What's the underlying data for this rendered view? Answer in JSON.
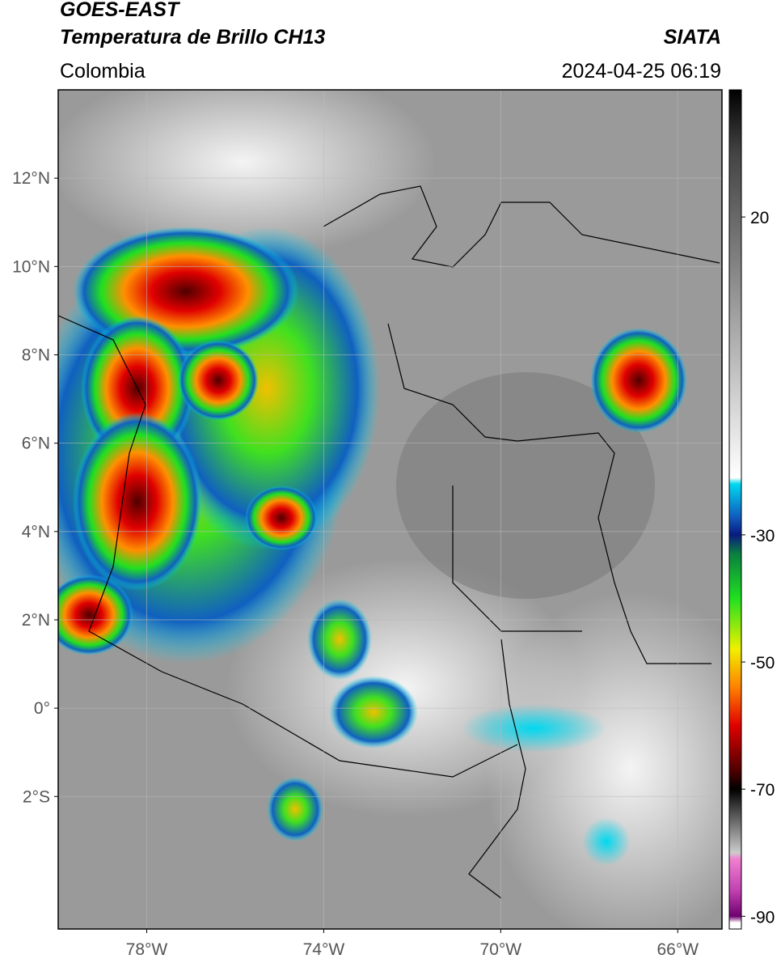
{
  "header": {
    "title": "GOES-EAST",
    "subtitle": "Temperatura de Brillo CH13",
    "source": "SIATA",
    "region": "Colombia",
    "datetime": "2024-04-25 06:19"
  },
  "map": {
    "lon_range": [
      -80,
      -65
    ],
    "lat_range": [
      -5,
      14
    ],
    "lon_ticks": [
      {
        "value": -78,
        "label": "78°W"
      },
      {
        "value": -74,
        "label": "74°W"
      },
      {
        "value": -70,
        "label": "70°W"
      },
      {
        "value": -66,
        "label": "66°W"
      }
    ],
    "lat_ticks": [
      {
        "value": 12,
        "label": "12°N"
      },
      {
        "value": 10,
        "label": "10°N"
      },
      {
        "value": 8,
        "label": "8°N"
      },
      {
        "value": 6,
        "label": "6°N"
      },
      {
        "value": 4,
        "label": "4°N"
      },
      {
        "value": 2,
        "label": "2°N"
      },
      {
        "value": 0,
        "label": "0°"
      },
      {
        "value": -2,
        "label": "2°S"
      }
    ]
  },
  "colorbar": {
    "range": [
      -92,
      40
    ],
    "ticks": [
      20,
      -30,
      -50,
      -70,
      -90
    ],
    "colormap": [
      {
        "value": 40,
        "color": "#000000"
      },
      {
        "value": 30,
        "color": "#444444"
      },
      {
        "value": 10,
        "color": "#8c8c8c"
      },
      {
        "value": -21,
        "color": "#ffffff"
      },
      {
        "value": -22,
        "color": "#00d8f0"
      },
      {
        "value": -27,
        "color": "#1060c0"
      },
      {
        "value": -30,
        "color": "#0a1a80"
      },
      {
        "value": -33,
        "color": "#0a8040"
      },
      {
        "value": -40,
        "color": "#20e020"
      },
      {
        "value": -48,
        "color": "#f0f000"
      },
      {
        "value": -54,
        "color": "#ff8000"
      },
      {
        "value": -60,
        "color": "#e00000"
      },
      {
        "value": -67,
        "color": "#500000"
      },
      {
        "value": -70,
        "color": "#000000"
      },
      {
        "value": -74,
        "color": "#555555"
      },
      {
        "value": -80,
        "color": "#cccccc"
      },
      {
        "value": -81,
        "color": "#f080d0"
      },
      {
        "value": -86,
        "color": "#c040b0"
      },
      {
        "value": -90,
        "color": "#700070"
      },
      {
        "value": -91,
        "color": "#ffffff"
      }
    ]
  }
}
